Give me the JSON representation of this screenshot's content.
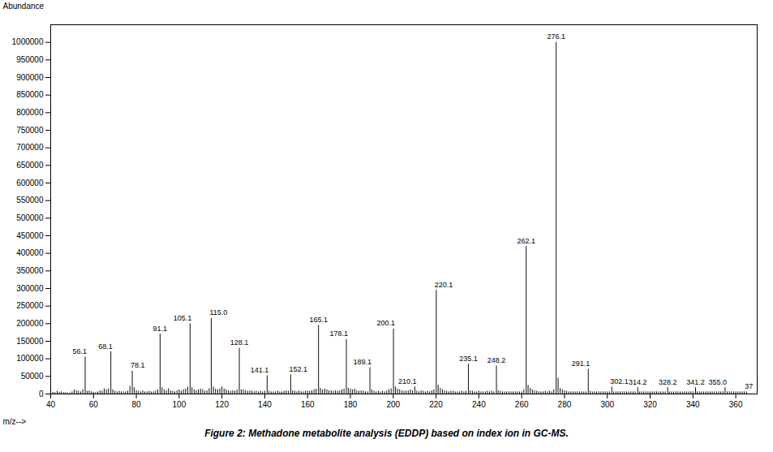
{
  "chart_data": {
    "type": "stem",
    "title": "Figure 2:  Methadone metabolite analysis (EDDP) based on index ion in GC-MS.",
    "xlabel": "m/z-->",
    "ylabel": "Abundance",
    "color": "#111111",
    "xlim": [
      40,
      370
    ],
    "ylim": [
      0,
      1050000
    ],
    "xticks": [
      40,
      60,
      80,
      100,
      120,
      140,
      160,
      180,
      200,
      220,
      240,
      260,
      280,
      300,
      320,
      340,
      360
    ],
    "yticks": [
      0,
      50000,
      100000,
      150000,
      200000,
      250000,
      300000,
      350000,
      400000,
      450000,
      500000,
      550000,
      600000,
      650000,
      700000,
      750000,
      800000,
      850000,
      900000,
      950000,
      1000000
    ],
    "x": [
      41,
      42,
      43,
      44,
      45,
      46,
      47,
      48,
      49,
      50,
      51,
      52,
      53,
      54,
      55,
      56.1,
      57,
      58,
      59,
      60,
      61,
      62,
      63,
      64,
      65,
      66,
      67,
      68.1,
      69,
      70,
      71,
      72,
      73,
      74,
      75,
      76,
      77,
      78.1,
      79,
      80,
      81,
      82,
      83,
      84,
      85,
      86,
      87,
      88,
      89,
      90,
      91.1,
      92,
      93,
      94,
      95,
      96,
      97,
      98,
      99,
      100,
      101,
      102,
      103,
      104,
      105.1,
      106,
      107,
      108,
      109,
      110,
      111,
      112,
      113,
      114,
      115.0,
      116,
      117,
      118,
      119,
      120,
      121,
      122,
      123,
      124,
      125,
      126,
      127,
      128.1,
      129,
      130,
      131,
      132,
      133,
      134,
      135,
      136,
      137,
      138,
      139,
      140,
      141.1,
      142,
      143,
      144,
      145,
      146,
      147,
      148,
      149,
      150,
      151,
      152.1,
      153,
      154,
      155,
      156,
      157,
      158,
      159,
      160,
      161,
      162,
      163,
      164,
      165.1,
      166,
      167,
      168,
      169,
      170,
      171,
      172,
      173,
      174,
      175,
      176,
      177,
      178.1,
      179,
      180,
      181,
      182,
      183,
      184,
      185,
      186,
      187,
      188,
      189.1,
      190,
      191,
      192,
      193,
      194,
      195,
      196,
      197,
      198,
      199,
      200.1,
      201,
      202,
      203,
      204,
      205,
      206,
      207,
      208,
      209,
      210.1,
      211,
      212,
      213,
      214,
      215,
      216,
      217,
      218,
      219,
      220.1,
      221,
      222,
      223,
      224,
      225,
      226,
      227,
      228,
      229,
      230,
      231,
      232,
      233,
      234,
      235.1,
      236,
      237,
      238,
      239,
      240,
      241,
      242,
      243,
      244,
      245,
      246,
      247,
      248.2,
      249,
      250,
      251,
      252,
      253,
      254,
      255,
      256,
      257,
      258,
      259,
      260,
      261,
      262.1,
      263,
      264,
      265,
      266,
      267,
      268,
      269,
      270,
      271,
      272,
      273,
      274,
      275,
      276.1,
      277,
      278,
      279,
      280,
      281,
      282,
      283,
      284,
      285,
      286,
      287,
      288,
      289,
      290,
      291.1,
      292,
      293,
      294,
      295,
      296,
      297,
      298,
      299,
      300,
      301,
      302.1,
      303,
      304,
      305,
      306,
      307,
      308,
      309,
      310,
      311,
      312,
      313,
      314.2,
      315,
      316,
      317,
      318,
      319,
      320,
      321,
      322,
      323,
      324,
      325,
      326,
      327,
      328.2,
      329,
      330,
      331,
      332,
      333,
      334,
      335,
      336,
      337,
      338,
      339,
      340,
      341.2,
      342,
      343,
      344,
      345,
      346,
      347,
      348,
      349,
      350,
      351,
      352,
      353,
      354,
      355.0,
      356,
      357,
      358,
      359,
      360,
      361,
      362,
      363,
      364,
      365
    ],
    "values": [
      5000,
      4000,
      8000,
      5000,
      6000,
      4000,
      4000,
      3000,
      3000,
      6000,
      12000,
      9000,
      8000,
      6000,
      12000,
      105000,
      8000,
      9000,
      6000,
      5000,
      4000,
      6000,
      9000,
      8000,
      15000,
      12000,
      15000,
      120000,
      12000,
      8000,
      6000,
      8000,
      6000,
      6000,
      6000,
      8000,
      22000,
      65000,
      18000,
      10000,
      8000,
      6000,
      9000,
      6000,
      6000,
      8000,
      6000,
      6000,
      8000,
      12000,
      170000,
      18000,
      12000,
      9000,
      15000,
      9000,
      8000,
      6000,
      9000,
      12000,
      8000,
      12000,
      14000,
      20000,
      200000,
      18000,
      12000,
      9000,
      12000,
      14000,
      12000,
      8000,
      9000,
      15000,
      215000,
      20000,
      14000,
      12000,
      15000,
      20000,
      14000,
      12000,
      9000,
      8000,
      9000,
      8000,
      12000,
      130000,
      12000,
      12000,
      9000,
      8000,
      9000,
      8000,
      6000,
      8000,
      6000,
      8000,
      6000,
      8000,
      52000,
      8000,
      6000,
      6000,
      6000,
      8000,
      6000,
      6000,
      8000,
      9000,
      8000,
      55000,
      9000,
      8000,
      6000,
      9000,
      6000,
      6000,
      8000,
      9000,
      8000,
      9000,
      12000,
      14000,
      195000,
      16000,
      12000,
      14000,
      12000,
      9000,
      9000,
      8000,
      9000,
      8000,
      9000,
      12000,
      14000,
      155000,
      16000,
      14000,
      12000,
      14000,
      9000,
      8000,
      9000,
      8000,
      6000,
      6000,
      75000,
      12000,
      8000,
      6000,
      8000,
      6000,
      8000,
      6000,
      9000,
      12000,
      15000,
      185000,
      20000,
      14000,
      12000,
      9000,
      8000,
      8000,
      9000,
      12000,
      9000,
      20000,
      8000,
      6000,
      9000,
      8000,
      6000,
      8000,
      6000,
      9000,
      12000,
      295000,
      25000,
      16000,
      12000,
      9000,
      8000,
      6000,
      8000,
      8000,
      6000,
      6000,
      6000,
      8000,
      6000,
      8000,
      85000,
      9000,
      8000,
      6000,
      6000,
      8000,
      6000,
      6000,
      6000,
      8000,
      6000,
      8000,
      6000,
      80000,
      9000,
      8000,
      6000,
      6000,
      6000,
      6000,
      6000,
      6000,
      6000,
      6000,
      6000,
      6000,
      12000,
      420000,
      25000,
      16000,
      12000,
      9000,
      8000,
      6000,
      6000,
      6000,
      8000,
      6000,
      8000,
      6000,
      12000,
      1000000,
      45000,
      16000,
      12000,
      9000,
      8000,
      6000,
      6000,
      6000,
      6000,
      6000,
      6000,
      6000,
      6000,
      6000,
      70000,
      8000,
      6000,
      6000,
      6000,
      6000,
      6000,
      6000,
      6000,
      6000,
      6000,
      20000,
      6000,
      6000,
      6000,
      6000,
      6000,
      6000,
      6000,
      6000,
      6000,
      6000,
      6000,
      18000,
      6000,
      6000,
      6000,
      6000,
      6000,
      6000,
      6000,
      6000,
      6000,
      6000,
      6000,
      6000,
      6000,
      18000,
      6000,
      6000,
      6000,
      6000,
      6000,
      6000,
      6000,
      6000,
      6000,
      6000,
      6000,
      6000,
      18000,
      6000,
      6000,
      6000,
      6000,
      6000,
      6000,
      6000,
      6000,
      6000,
      6000,
      6000,
      6000,
      6000,
      18000,
      6000,
      6000,
      6000,
      6000,
      6000,
      6000,
      6000,
      6000,
      6000,
      6000
    ],
    "annotations": [
      {
        "x": 56.1,
        "y": 105000,
        "text": "56.1"
      },
      {
        "x": 68.1,
        "y": 120000,
        "text": "68.1"
      },
      {
        "x": 78.1,
        "y": 65000,
        "text": "78.1"
      },
      {
        "x": 91.1,
        "y": 170000,
        "text": "91.1"
      },
      {
        "x": 105.1,
        "y": 200000,
        "text": "105.1"
      },
      {
        "x": 115.0,
        "y": 215000,
        "text": "115.0"
      },
      {
        "x": 128.1,
        "y": 130000,
        "text": "128.1"
      },
      {
        "x": 141.1,
        "y": 52000,
        "text": "141.1"
      },
      {
        "x": 152.1,
        "y": 55000,
        "text": "152.1"
      },
      {
        "x": 165.1,
        "y": 195000,
        "text": "165.1"
      },
      {
        "x": 178.1,
        "y": 155000,
        "text": "178.1"
      },
      {
        "x": 189.1,
        "y": 75000,
        "text": "189.1"
      },
      {
        "x": 200.1,
        "y": 185000,
        "text": "200.1"
      },
      {
        "x": 210.1,
        "y": 20000,
        "text": "210.1"
      },
      {
        "x": 220.1,
        "y": 295000,
        "text": "220.1"
      },
      {
        "x": 235.1,
        "y": 85000,
        "text": "235.1"
      },
      {
        "x": 248.2,
        "y": 80000,
        "text": "248.2"
      },
      {
        "x": 262.1,
        "y": 420000,
        "text": "262.1"
      },
      {
        "x": 276.1,
        "y": 1000000,
        "text": "276.1"
      },
      {
        "x": 291.1,
        "y": 70000,
        "text": "291.1"
      },
      {
        "x": 302.1,
        "y": 20000,
        "text": "302.1"
      },
      {
        "x": 314.2,
        "y": 18000,
        "text": "314.2"
      },
      {
        "x": 328.2,
        "y": 18000,
        "text": "328.2"
      },
      {
        "x": 341.2,
        "y": 18000,
        "text": "341.2"
      },
      {
        "x": 355.0,
        "y": 18000,
        "text": "355.0"
      },
      {
        "x": 365,
        "y": 6000,
        "text": "37"
      }
    ]
  }
}
